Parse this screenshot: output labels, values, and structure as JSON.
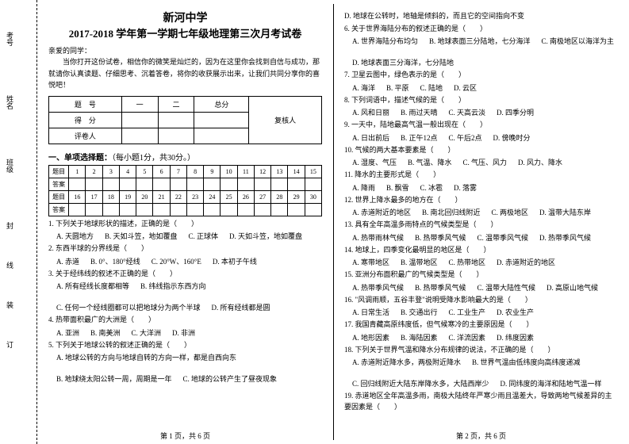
{
  "binding_labels": [
    "考号",
    "姓名",
    "班级",
    "封",
    "线",
    "装",
    "订"
  ],
  "header": {
    "school": "新河中学",
    "title": "2017-2018 学年第一学期七年级地理第三次月考试卷"
  },
  "intro": {
    "greeting": "亲爱的同学：",
    "body": "当你打开这份试卷，相信你的微笑是灿烂的，因为在这里你会找到自信与成功，那就请你认真读题、仔细思考、沉着答卷，将你的收获展示出来，让我们共同分享你的喜悦吧！"
  },
  "score_table": {
    "headers": [
      "题　号",
      "一",
      "二",
      "总分",
      "复核人"
    ],
    "rows": [
      "得　分",
      "评卷人"
    ]
  },
  "section1": {
    "title": "一、单项选择题：",
    "note": "（每小题1分，共30分。）",
    "row_labels": [
      "题目",
      "答案"
    ],
    "nums_a": [
      "1",
      "2",
      "3",
      "4",
      "5",
      "6",
      "7",
      "8",
      "9",
      "10",
      "11",
      "12",
      "13",
      "14",
      "15"
    ],
    "nums_b": [
      "16",
      "17",
      "18",
      "19",
      "20",
      "21",
      "22",
      "23",
      "24",
      "25",
      "26",
      "27",
      "28",
      "29",
      "30"
    ]
  },
  "questions_left": [
    {
      "n": "1.",
      "stem": "下列关于地球形状的描述，正确的是（　　）",
      "opts": [
        "A. 天圆地方",
        "B. 天如斗笠，地如覆盘",
        "C. 正球体",
        "D. 天如斗笠，地如覆盘"
      ]
    },
    {
      "n": "2.",
      "stem": "东西半球的分界线是（　　）",
      "opts": [
        "A. 赤道",
        "B. 0°、180°经线",
        "C. 20°W、160°E",
        "D. 本初子午线"
      ]
    },
    {
      "n": "3.",
      "stem": "关于经纬线的叙述不正确的是（　　）",
      "opts": [
        "A. 所有经线长度都相等",
        "B. 纬线指示东西方向",
        "C. 任何一个经线圈都可以把地球分为两个半球",
        "D. 所有经线都是圆"
      ]
    },
    {
      "n": "4.",
      "stem": "热带面积最广的大洲是（　　）",
      "opts": [
        "A. 亚洲",
        "B. 南美洲",
        "C. 大洋洲",
        "D. 非洲"
      ]
    },
    {
      "n": "5.",
      "stem": "下列关于地球公转的叙述正确的是（　　）",
      "opts": [
        "A. 地球公转的方向与地球自转的方向一样，都是自西向东",
        "B. 地球绕太阳公转一周，周期是一年",
        "C. 地球的公转产生了昼夜现象"
      ]
    }
  ],
  "questions_right": [
    {
      "n": "",
      "stem": "D. 地球在公转时，地轴是倾斜的，而且它的空间指向不变",
      "opts": []
    },
    {
      "n": "6.",
      "stem": "关于世界海陆分布的叙述正确的是（　　）",
      "opts": [
        "A. 世界海陆分布均匀",
        "B. 地球表面三分陆地，七分海洋",
        "C. 南极地区以海洋为主",
        "D. 地球表面三分海洋，七分陆地"
      ]
    },
    {
      "n": "7.",
      "stem": "卫星云图中，绿色表示的是（　　）",
      "opts": [
        "A. 海洋",
        "B. 平原",
        "C. 陆地",
        "D. 云区"
      ]
    },
    {
      "n": "8.",
      "stem": "下列词语中，描述气候的是（　　）",
      "opts": [
        "A. 风和日丽",
        "B. 雨过天晴",
        "C. 天高云淡",
        "D. 四季分明"
      ]
    },
    {
      "n": "9.",
      "stem": "一天中，陆地最高气温一般出现在（　　）",
      "opts": [
        "A. 日出前后",
        "B. 正午12点",
        "C. 午后2点",
        "D. 傍晚时分"
      ]
    },
    {
      "n": "10.",
      "stem": "气候的两大基本要素是（　　）",
      "opts": [
        "A. 湿度、气压",
        "B. 气温、降水",
        "C. 气压、风力",
        "D. 风力、降水"
      ]
    },
    {
      "n": "11.",
      "stem": "降水的主要形式是（　　）",
      "opts": [
        "A. 降雨",
        "B. 飘雪",
        "C. 冰雹",
        "D. 落雾"
      ]
    },
    {
      "n": "12.",
      "stem": "世界上降水最多的地方在（　　）",
      "opts": [
        "A. 赤道附近的地区",
        "B. 南北回归线附近",
        "C. 两极地区",
        "D. 温带大陆东岸"
      ]
    },
    {
      "n": "13.",
      "stem": "具有全年高温多雨特点的气候类型是（　　）",
      "opts": [
        "A. 热带雨林气候",
        "B. 热带季风气候",
        "C. 温带季风气候",
        "D. 热带季风气候"
      ]
    },
    {
      "n": "14.",
      "stem": "地球上，四季变化最明显的地区是（　　）",
      "opts": [
        "A. 寒带地区",
        "B. 温带地区",
        "C. 热带地区",
        "D. 赤道附近的地区"
      ]
    },
    {
      "n": "15.",
      "stem": "亚洲分布面积最广的气候类型是（　　）",
      "opts": [
        "A. 热带季风气候",
        "B. 热带季风气候",
        "C. 温带大陆性气候",
        "D. 高原山地气候"
      ]
    },
    {
      "n": "16.",
      "stem": "\"风调雨顺，五谷丰登\"说明受降水影响最大的是（　　）",
      "opts": [
        "A. 日常生活",
        "B. 交通出行",
        "C. 工业生产",
        "D. 农业生产"
      ]
    },
    {
      "n": "17.",
      "stem": "我国青藏高原纬度低，但气候寒冷的主要原因是（　　）",
      "opts": [
        "A. 地形因素",
        "B. 海陆因素",
        "C. 洋流因素",
        "D. 纬度因素"
      ]
    },
    {
      "n": "18.",
      "stem": "下列关于世界气温和降水分布规律的说法，不正确的是（　　）",
      "opts": [
        "A. 赤道附近降水多，两极附近降水",
        "B. 世界气温由低纬度向高纬度递减",
        "C. 回归线附近大陆东岸降水多，大陆西岸少",
        "D. 同纬度的海洋和陆地气温一样"
      ]
    },
    {
      "n": "19.",
      "stem": "赤道地区全年高温多雨，南极大陆终年严寒少雨且温差大，导致两地气候差异的主要因素是（　　）",
      "opts": []
    }
  ],
  "footers": {
    "left": "第 1 页，共 6 页",
    "right": "第 2 页，共 6 页"
  }
}
